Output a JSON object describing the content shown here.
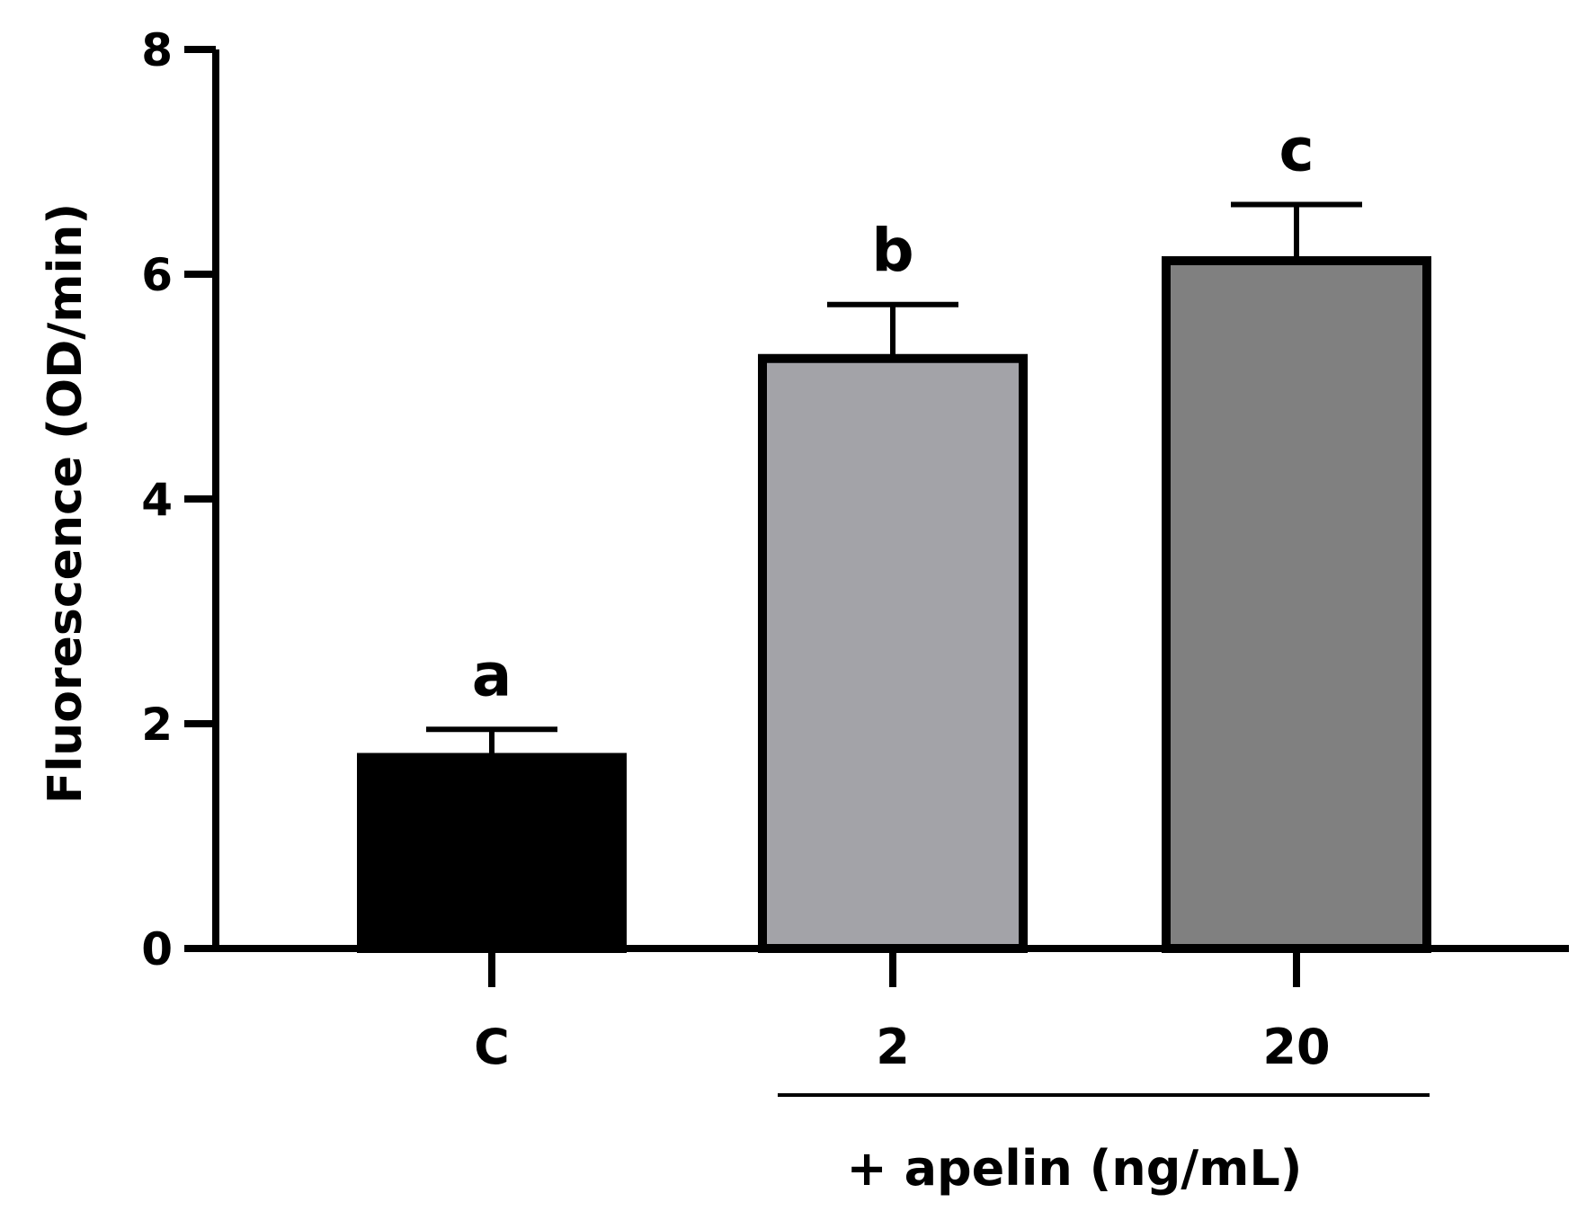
{
  "chart_data": {
    "type": "bar",
    "categories": [
      "C",
      "2",
      "20"
    ],
    "values": [
      1.7,
      5.25,
      6.12
    ],
    "errors": [
      0.25,
      0.48,
      0.5
    ],
    "significance": [
      "a",
      "b",
      "c"
    ],
    "bar_colors": [
      "#000000",
      "#a3a3a8",
      "#808080"
    ],
    "ylabel": "Fluorescence (OD/min)",
    "group_label": "+ apelin (ng/mL)",
    "ylim": [
      0,
      8
    ],
    "yticks": [
      "0",
      "2",
      "4",
      "6",
      "8"
    ],
    "grid": false
  }
}
